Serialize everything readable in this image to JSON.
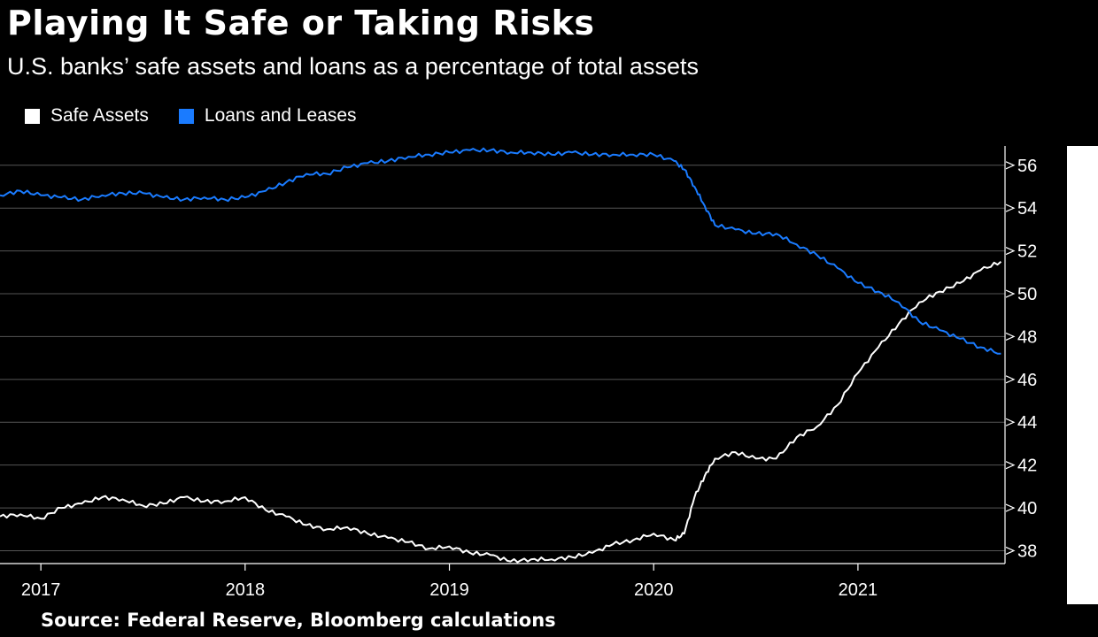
{
  "header": {
    "title": "Playing It Safe or Taking Risks",
    "subtitle": "U.S. banks’ safe assets and loans as a percentage of total assets"
  },
  "footer": {
    "source": "Source: Federal Reserve, Bloomberg calculations"
  },
  "colors": {
    "background": "#000000",
    "safe_assets": "#ffffff",
    "loans_and_leases": "#1a7bff",
    "grid": "#555555"
  },
  "chart_data": {
    "type": "line",
    "title": "Playing It Safe or Taking Risks",
    "subtitle": "U.S. banks’ safe assets and loans as a percentage of total assets",
    "xlabel": "",
    "ylabel": "",
    "xlim": [
      2016.8,
      2021.72
    ],
    "ylim": [
      37.4,
      56.9
    ],
    "x_ticks": [
      {
        "value": 2017,
        "label": "2017"
      },
      {
        "value": 2018,
        "label": "2018"
      },
      {
        "value": 2019,
        "label": "2019"
      },
      {
        "value": 2020,
        "label": "2020"
      },
      {
        "value": 2021,
        "label": "2021"
      }
    ],
    "y_ticks": [
      38,
      40,
      42,
      44,
      46,
      48,
      50,
      52,
      54,
      56
    ],
    "y_axis_side": "right",
    "grid": "horizontal",
    "legend_position": "top-left",
    "series": [
      {
        "name": "Safe Assets",
        "color": "#ffffff",
        "points": [
          [
            2016.8,
            39.6
          ],
          [
            2016.9,
            39.7
          ],
          [
            2017.0,
            39.5
          ],
          [
            2017.1,
            40.0
          ],
          [
            2017.2,
            40.2
          ],
          [
            2017.3,
            40.5
          ],
          [
            2017.4,
            40.4
          ],
          [
            2017.5,
            40.1
          ],
          [
            2017.6,
            40.2
          ],
          [
            2017.7,
            40.5
          ],
          [
            2017.8,
            40.3
          ],
          [
            2017.9,
            40.3
          ],
          [
            2018.0,
            40.5
          ],
          [
            2018.1,
            39.9
          ],
          [
            2018.2,
            39.6
          ],
          [
            2018.3,
            39.2
          ],
          [
            2018.4,
            39.0
          ],
          [
            2018.5,
            39.1
          ],
          [
            2018.6,
            38.8
          ],
          [
            2018.7,
            38.6
          ],
          [
            2018.8,
            38.4
          ],
          [
            2018.9,
            38.1
          ],
          [
            2019.0,
            38.2
          ],
          [
            2019.1,
            37.9
          ],
          [
            2019.2,
            37.8
          ],
          [
            2019.3,
            37.5
          ],
          [
            2019.4,
            37.6
          ],
          [
            2019.5,
            37.6
          ],
          [
            2019.6,
            37.7
          ],
          [
            2019.7,
            37.9
          ],
          [
            2019.8,
            38.3
          ],
          [
            2019.9,
            38.5
          ],
          [
            2020.0,
            38.8
          ],
          [
            2020.1,
            38.5
          ],
          [
            2020.15,
            38.8
          ],
          [
            2020.2,
            40.5
          ],
          [
            2020.25,
            41.5
          ],
          [
            2020.3,
            42.3
          ],
          [
            2020.4,
            42.6
          ],
          [
            2020.5,
            42.3
          ],
          [
            2020.6,
            42.3
          ],
          [
            2020.7,
            43.3
          ],
          [
            2020.8,
            43.8
          ],
          [
            2020.9,
            44.8
          ],
          [
            2021.0,
            46.3
          ],
          [
            2021.1,
            47.5
          ],
          [
            2021.2,
            48.6
          ],
          [
            2021.3,
            49.6
          ],
          [
            2021.4,
            50.1
          ],
          [
            2021.5,
            50.5
          ],
          [
            2021.6,
            51.1
          ],
          [
            2021.7,
            51.5
          ]
        ]
      },
      {
        "name": "Loans and Leases",
        "color": "#1a7bff",
        "points": [
          [
            2016.8,
            54.6
          ],
          [
            2016.9,
            54.8
          ],
          [
            2017.0,
            54.6
          ],
          [
            2017.1,
            54.5
          ],
          [
            2017.2,
            54.4
          ],
          [
            2017.3,
            54.6
          ],
          [
            2017.4,
            54.7
          ],
          [
            2017.5,
            54.7
          ],
          [
            2017.6,
            54.5
          ],
          [
            2017.7,
            54.4
          ],
          [
            2017.8,
            54.5
          ],
          [
            2017.9,
            54.4
          ],
          [
            2018.0,
            54.5
          ],
          [
            2018.1,
            54.8
          ],
          [
            2018.2,
            55.2
          ],
          [
            2018.3,
            55.6
          ],
          [
            2018.4,
            55.6
          ],
          [
            2018.5,
            55.9
          ],
          [
            2018.6,
            56.1
          ],
          [
            2018.7,
            56.2
          ],
          [
            2018.8,
            56.4
          ],
          [
            2018.9,
            56.5
          ],
          [
            2019.0,
            56.6
          ],
          [
            2019.1,
            56.7
          ],
          [
            2019.2,
            56.7
          ],
          [
            2019.3,
            56.6
          ],
          [
            2019.4,
            56.6
          ],
          [
            2019.5,
            56.5
          ],
          [
            2019.6,
            56.6
          ],
          [
            2019.7,
            56.5
          ],
          [
            2019.8,
            56.5
          ],
          [
            2019.9,
            56.5
          ],
          [
            2020.0,
            56.5
          ],
          [
            2020.1,
            56.2
          ],
          [
            2020.15,
            55.8
          ],
          [
            2020.2,
            55.0
          ],
          [
            2020.25,
            54.1
          ],
          [
            2020.3,
            53.2
          ],
          [
            2020.4,
            53.0
          ],
          [
            2020.5,
            52.8
          ],
          [
            2020.6,
            52.8
          ],
          [
            2020.7,
            52.3
          ],
          [
            2020.8,
            51.8
          ],
          [
            2020.9,
            51.2
          ],
          [
            2021.0,
            50.5
          ],
          [
            2021.1,
            50.1
          ],
          [
            2021.2,
            49.6
          ],
          [
            2021.3,
            48.7
          ],
          [
            2021.4,
            48.3
          ],
          [
            2021.5,
            47.9
          ],
          [
            2021.6,
            47.5
          ],
          [
            2021.7,
            47.2
          ]
        ]
      }
    ]
  }
}
